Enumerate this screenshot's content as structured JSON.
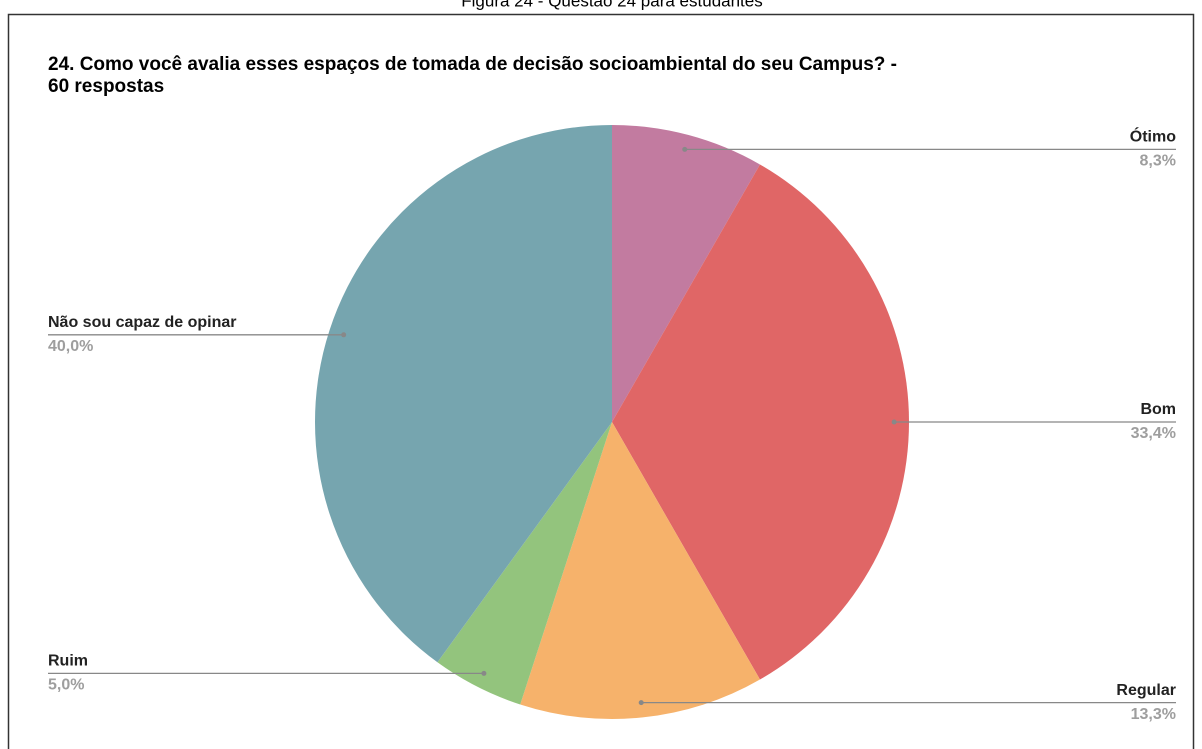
{
  "chart_data": {
    "type": "pie",
    "caption": "Figura 24 - Questão 24 para estudantes",
    "title": [
      "24. Como você avalia esses espaços de tomada de decisão socioambiental do seu Campus? -",
      "60 respostas"
    ],
    "categories": [
      "Ótimo",
      "Bom",
      "Regular",
      "Ruim",
      "Não sou capaz de opinar"
    ],
    "values": [
      8.3,
      33.4,
      13.3,
      5.0,
      40.0
    ],
    "value_labels": [
      "8,3%",
      "33,4%",
      "13,3%",
      "5,0%",
      "40,0%"
    ],
    "colors": [
      "#c27ba0",
      "#e06666",
      "#f6b26b",
      "#93c47d",
      "#76a5af"
    ]
  }
}
